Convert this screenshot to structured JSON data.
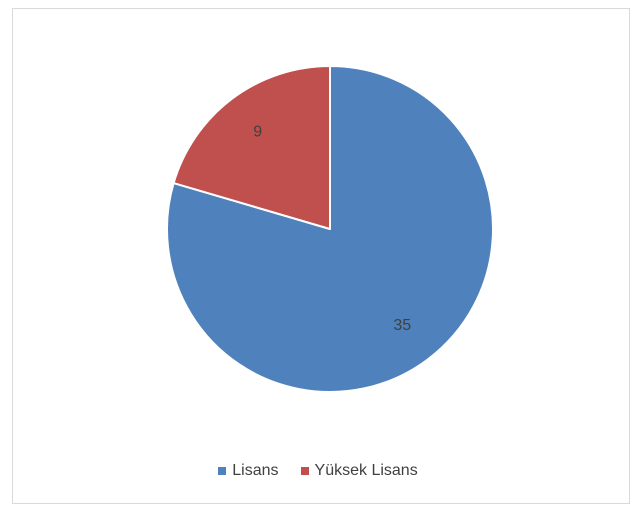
{
  "chart_data": {
    "type": "pie",
    "title": "",
    "categories": [
      "Lisans",
      "Yüksek Lisans"
    ],
    "values": [
      35,
      9
    ],
    "colors": [
      "#4f81bd",
      "#c0504d"
    ],
    "data_labels": [
      "35",
      "9"
    ],
    "legend": {
      "placement": "bottom",
      "entries": [
        "Lisans",
        "Yüksek Lisans"
      ]
    },
    "start_angle_deg": 0,
    "direction": "clockwise"
  }
}
